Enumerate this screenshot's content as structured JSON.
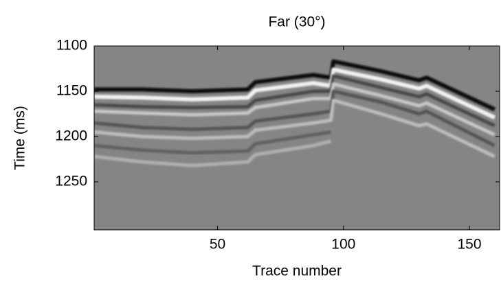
{
  "chart_data": {
    "type": "line",
    "title": "Far (30°)",
    "x_label": "Trace number",
    "y_label": "Time (ms)",
    "x": [
      1,
      20,
      40,
      62,
      65,
      88,
      95,
      96,
      115,
      130,
      133,
      160
    ],
    "series": [
      {
        "color": "#0d0d0d",
        "values": [
          1148,
          1148,
          1150,
          1148,
          1140,
          1132,
          1135,
          1117,
          1128,
          1138,
          1135,
          1170
        ]
      },
      {
        "color": "#f2f2f2",
        "values": [
          1156,
          1157,
          1159,
          1157,
          1149,
          1141,
          1144,
          1126,
          1137,
          1147,
          1144,
          1179
        ]
      },
      {
        "color": "#4a4a4a",
        "values": [
          1165,
          1167,
          1168,
          1167,
          1160,
          1150,
          1150,
          1133,
          1146,
          1156,
          1153,
          1188
        ]
      },
      {
        "color": "#c8c8c8",
        "values": [
          1172,
          1174,
          1176,
          1174,
          1168,
          1158,
          1158,
          1142,
          1155,
          1166,
          1163,
          1198
        ]
      },
      {
        "color": "#555555",
        "values": [
          1185,
          1190,
          1192,
          1190,
          1183,
          1175,
          1172,
          1150,
          1162,
          1175,
          1172,
          1210
        ]
      },
      {
        "color": "#bdbdbd",
        "values": [
          1195,
          1200,
          1202,
          1200,
          1193,
          1185,
          1182,
          1160,
          1175,
          1188,
          1186,
          1222
        ]
      },
      {
        "color": "#606060",
        "values": [
          1210,
          1215,
          1218,
          1216,
          1208,
          1198,
          1195,
          null,
          null,
          null,
          null,
          null
        ]
      },
      {
        "color": "#b0b0b0",
        "values": [
          1222,
          1228,
          1232,
          1228,
          1220,
          1210,
          1205,
          null,
          null,
          null,
          null,
          null
        ]
      }
    ],
    "plot_background": "#858585",
    "xlim": [
      1,
      162
    ],
    "ylim": [
      1100,
      1303
    ],
    "y_reversed": true,
    "xticks": [
      50,
      100,
      150
    ],
    "yticks": [
      1100,
      1150,
      1200,
      1250
    ]
  }
}
